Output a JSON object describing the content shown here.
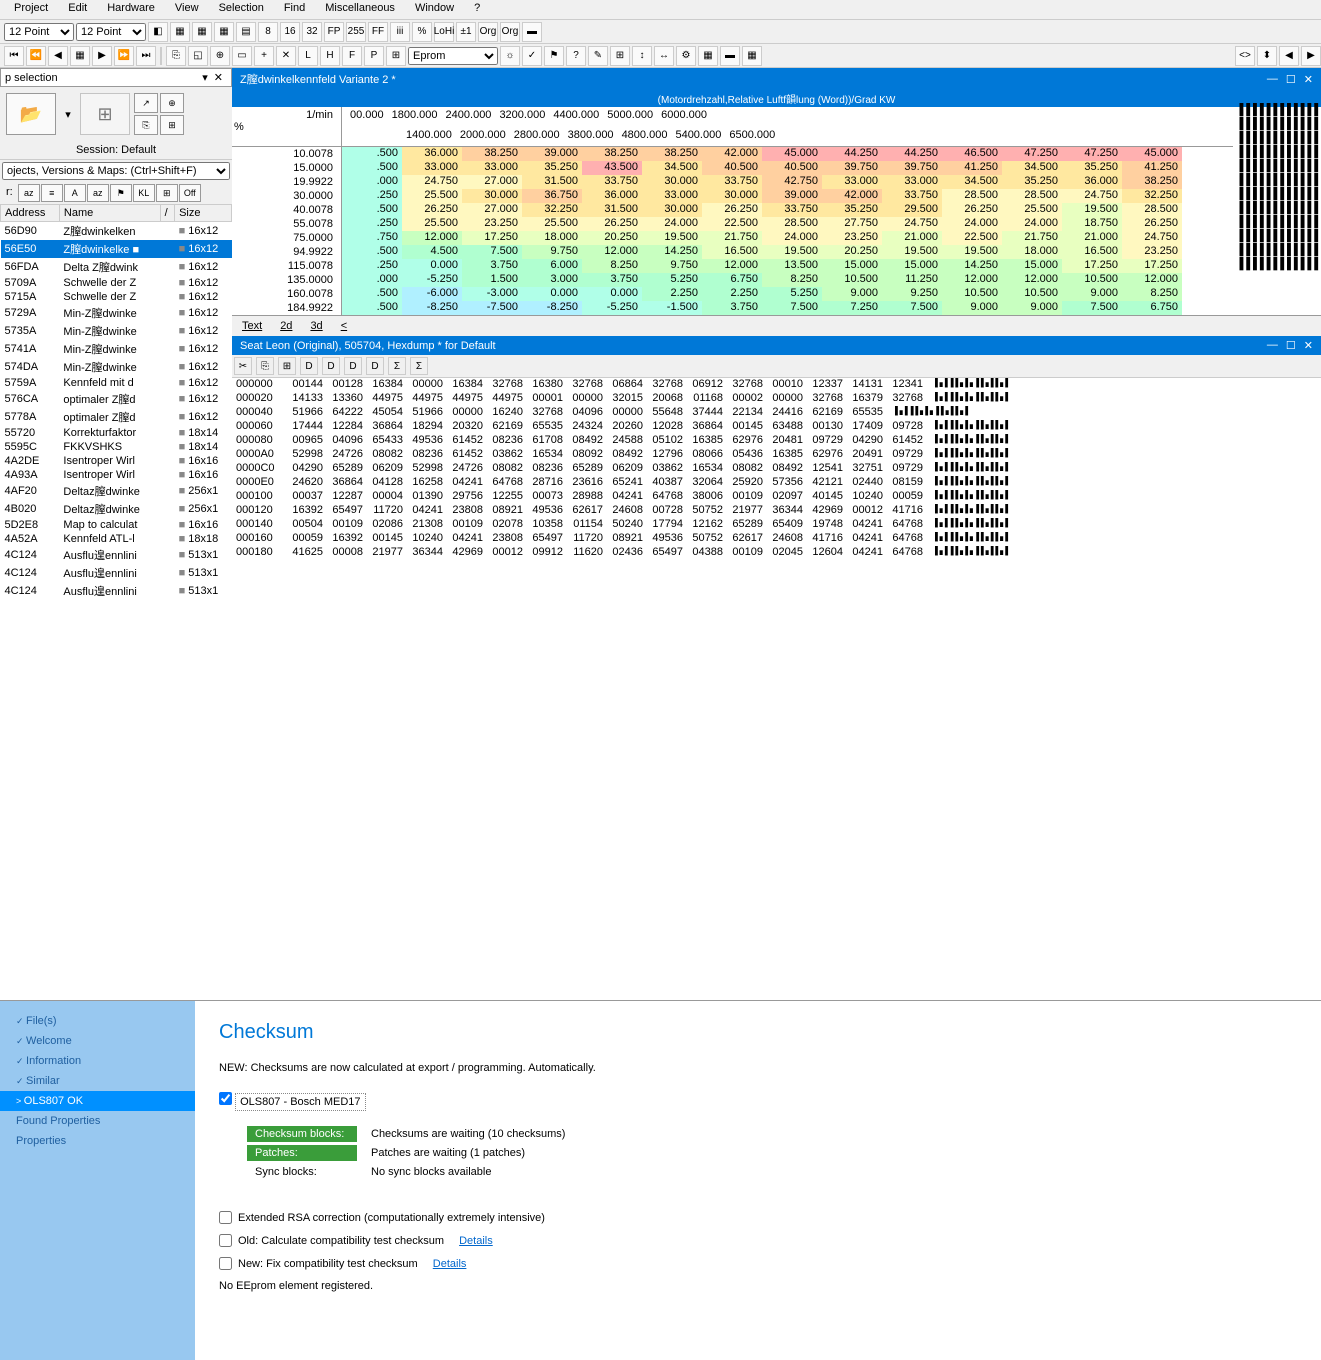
{
  "menu": [
    "Project",
    "Edit",
    "Hardware",
    "View",
    "Selection",
    "Find",
    "Miscellaneous",
    "Window",
    "?"
  ],
  "toolbar1": {
    "combo1": "12 Point",
    "combo2": "12 Point",
    "btns": [
      "◧",
      "▦",
      "▦",
      "▦",
      "▤",
      "8",
      "16",
      "32",
      "FP",
      "255",
      "FF",
      "iii",
      "%",
      "LoHi",
      "±1",
      "Org",
      "Org",
      "▬"
    ]
  },
  "toolbar2": {
    "nav": [
      "⏮",
      "⏪",
      "◀",
      "▦",
      "▶",
      "⏩",
      "⏭"
    ],
    "mid": [
      "⎘",
      "◱",
      "⊕",
      "▭",
      "+",
      "✕",
      "L",
      "H",
      "F",
      "P",
      "⊞"
    ],
    "combo": "Eprom",
    "right": [
      "☼",
      "✓",
      "⚑",
      "?",
      "✎",
      "⊞",
      "↕",
      "↔",
      "⚙",
      "▦",
      "▬",
      "▦"
    ],
    "far": [
      "<>",
      "⬍",
      "◀",
      "▶"
    ]
  },
  "leftPanel": {
    "title": "p selection",
    "session": "Session: Default",
    "filterLabel": "ojects, Versions & Maps:  (Ctrl+Shift+F)",
    "tags": [
      "az",
      "≡",
      "A",
      "az",
      "⚑",
      "KL",
      "⊞",
      "Off"
    ],
    "cols": [
      "Address",
      "Name",
      "/",
      "Size"
    ],
    "rows": [
      [
        "56D90",
        "Z膣dwinkelken",
        "16x12"
      ],
      [
        "56E50",
        "Z膣dwinkelke ■",
        "16x12"
      ],
      [
        "56FDA",
        "Delta Z膣dwink",
        "16x12"
      ],
      [
        "5709A",
        "Schwelle der Z",
        "16x12"
      ],
      [
        "5715A",
        "Schwelle der Z",
        "16x12"
      ],
      [
        "5729A",
        "Min-Z膣dwinke",
        "16x12"
      ],
      [
        "5735A",
        "Min-Z膣dwinke",
        "16x12"
      ],
      [
        "5741A",
        "Min-Z膣dwinke",
        "16x12"
      ],
      [
        "574DA",
        "Min-Z膣dwinke",
        "16x12"
      ],
      [
        "5759A",
        "Kennfeld mit d",
        "16x12"
      ],
      [
        "576CA",
        "optimaler Z膣d",
        "16x12"
      ],
      [
        "5778A",
        "optimaler Z膣d",
        "16x12"
      ],
      [
        "55720",
        "Korrekturfaktor",
        "18x14"
      ],
      [
        "5595C",
        "FKKVSHKS",
        "18x14"
      ],
      [
        "4A2DE",
        "Isentroper Wirl",
        "16x16"
      ],
      [
        "4A93A",
        "Isentroper Wirl",
        "16x16"
      ],
      [
        "4AF20",
        "Deltaz膣dwinke",
        "256x1"
      ],
      [
        "4B020",
        "Deltaz膣dwinke",
        "256x1"
      ],
      [
        "5D2E8",
        "Map to calculat",
        "16x16"
      ],
      [
        "4A52A",
        "Kennfeld ATL-l",
        "18x18"
      ],
      [
        "4C124",
        "Ausflu遑ennlini",
        "513x1"
      ],
      [
        "4C124",
        "Ausflu遑ennlini",
        "513x1"
      ],
      [
        "4C124",
        "Ausflu遑ennlini",
        "513x1"
      ]
    ],
    "selIdx": 1
  },
  "mapWin": {
    "title": "Z膣dwinkelkennfeld Variante 2 *",
    "info": "(Motordrehzahl,Relative Luftf韻lung (Word))/Grad KW",
    "unit1": "1/min",
    "unit2": "%",
    "colHdr1": [
      "00.000",
      "1800.000",
      "2400.000",
      "3200.000",
      "4400.000",
      "5000.000",
      "6000.000"
    ],
    "colHdr2": [
      "1400.000",
      "2000.000",
      "2800.000",
      "3800.000",
      "4800.000",
      "5400.000",
      "6500.000"
    ],
    "rowHdr": [
      "10.0078",
      "15.0000",
      "19.9922",
      "30.0000",
      "40.0078",
      "55.0078",
      "75.0000",
      "94.9922",
      "115.0078",
      "135.0000",
      "160.0078",
      "184.9922"
    ],
    "cells": [
      [
        ".500",
        "36.000",
        "38.250",
        "39.000",
        "38.250",
        "38.250",
        "42.000",
        "45.000",
        "44.250",
        "44.250",
        "46.500",
        "47.250",
        "47.250",
        "45.000"
      ],
      [
        ".500",
        "33.000",
        "33.000",
        "35.250",
        "43.500",
        "34.500",
        "40.500",
        "40.500",
        "39.750",
        "39.750",
        "41.250",
        "34.500",
        "35.250",
        "41.250"
      ],
      [
        ".000",
        "24.750",
        "27.000",
        "31.500",
        "33.750",
        "30.000",
        "33.750",
        "42.750",
        "33.000",
        "33.000",
        "34.500",
        "35.250",
        "36.000",
        "38.250"
      ],
      [
        ".250",
        "25.500",
        "30.000",
        "36.750",
        "36.000",
        "33.000",
        "30.000",
        "39.000",
        "42.000",
        "33.750",
        "28.500",
        "28.500",
        "24.750",
        "32.250"
      ],
      [
        ".500",
        "26.250",
        "27.000",
        "32.250",
        "31.500",
        "30.000",
        "26.250",
        "33.750",
        "35.250",
        "29.500",
        "26.250",
        "25.500",
        "19.500",
        "28.500"
      ],
      [
        ".250",
        "25.500",
        "23.250",
        "25.500",
        "26.250",
        "24.000",
        "22.500",
        "28.500",
        "27.750",
        "24.750",
        "24.000",
        "24.000",
        "18.750",
        "26.250"
      ],
      [
        ".750",
        "12.000",
        "17.250",
        "18.000",
        "20.250",
        "19.500",
        "21.750",
        "24.000",
        "23.250",
        "21.000",
        "22.500",
        "21.750",
        "21.000",
        "24.750"
      ],
      [
        ".500",
        "4.500",
        "7.500",
        "9.750",
        "12.000",
        "14.250",
        "16.500",
        "19.500",
        "20.250",
        "19.500",
        "19.500",
        "18.000",
        "16.500",
        "23.250"
      ],
      [
        ".250",
        "0.000",
        "3.750",
        "6.000",
        "8.250",
        "9.750",
        "12.000",
        "13.500",
        "15.000",
        "15.000",
        "14.250",
        "15.000",
        "17.250",
        "17.250"
      ],
      [
        ".000",
        "-5.250",
        "1.500",
        "3.000",
        "3.750",
        "5.250",
        "6.750",
        "8.250",
        "10.500",
        "11.250",
        "12.000",
        "12.000",
        "10.500",
        "12.000"
      ],
      [
        ".500",
        "-6.000",
        "-3.000",
        "0.000",
        "0.000",
        "2.250",
        "2.250",
        "5.250",
        "9.000",
        "9.250",
        "10.500",
        "10.500",
        "9.000",
        "8.250"
      ],
      [
        ".500",
        "-8.250",
        "-7.500",
        "-8.250",
        "-5.250",
        "-1.500",
        "3.750",
        "7.500",
        "7.250",
        "7.500",
        "9.000",
        "9.000",
        "7.500",
        "6.750"
      ]
    ],
    "tabs": [
      "Text",
      "2d",
      "3d",
      "<"
    ]
  },
  "hexWin": {
    "title": "Seat Leon (Original), 505704, Hexdump * for Default",
    "tb": [
      "✂",
      "⎘",
      "⊞",
      "D",
      "D",
      "D",
      "D",
      "Σ",
      "Σ"
    ],
    "rows": [
      [
        "000000",
        [
          "00144",
          "00128",
          "16384",
          "00000",
          "16384",
          "32768",
          "16380",
          "32768",
          "06864",
          "32768",
          "06912",
          "32768",
          "00010",
          "12337",
          "14131",
          "12341"
        ]
      ],
      [
        "000020",
        [
          "14133",
          "13360",
          "44975",
          "44975",
          "44975",
          "44975",
          "00001",
          "00000",
          "32015",
          "20068",
          "01168",
          "00002",
          "00000",
          "32768",
          "16379",
          "32768"
        ]
      ],
      [
        "000040",
        [
          "51966",
          "64222",
          "45054",
          "51966",
          "00000",
          "16240",
          "32768",
          "04096",
          "00000",
          "55648",
          "37444",
          "22134",
          "24416",
          "62169",
          "65535"
        ]
      ],
      [
        "000060",
        [
          "17444",
          "12284",
          "36864",
          "18294",
          "20320",
          "62169",
          "65535",
          "24324",
          "20260",
          "12028",
          "36864",
          "00145",
          "63488",
          "00130",
          "17409",
          "09728"
        ]
      ],
      [
        "000080",
        [
          "00965",
          "04096",
          "65433",
          "49536",
          "61452",
          "08236",
          "61708",
          "08492",
          "24588",
          "05102",
          "16385",
          "62976",
          "20481",
          "09729",
          "04290",
          "61452"
        ]
      ],
      [
        "0000A0",
        [
          "52998",
          "24726",
          "08082",
          "08236",
          "61452",
          "03862",
          "16534",
          "08092",
          "08492",
          "12796",
          "08066",
          "05436",
          "16385",
          "62976",
          "20491",
          "09729"
        ]
      ],
      [
        "0000C0",
        [
          "04290",
          "65289",
          "06209",
          "52998",
          "24726",
          "08082",
          "08236",
          "65289",
          "06209",
          "03862",
          "16534",
          "08082",
          "08492",
          "12541",
          "32751",
          "09729"
        ]
      ],
      [
        "0000E0",
        [
          "24620",
          "36864",
          "04128",
          "16258",
          "04241",
          "64768",
          "28716",
          "23616",
          "65241",
          "40387",
          "32064",
          "25920",
          "57356",
          "42121",
          "02440",
          "08159"
        ]
      ],
      [
        "000100",
        [
          "00037",
          "12287",
          "00004",
          "01390",
          "29756",
          "12255",
          "00073",
          "28988",
          "04241",
          "64768",
          "38006",
          "00109",
          "02097",
          "40145",
          "10240",
          "00059"
        ]
      ],
      [
        "000120",
        [
          "16392",
          "65497",
          "11720",
          "04241",
          "23808",
          "08921",
          "49536",
          "62617",
          "24608",
          "00728",
          "50752",
          "21977",
          "36344",
          "42969",
          "00012",
          "41716"
        ]
      ],
      [
        "000140",
        [
          "00504",
          "00109",
          "02086",
          "21308",
          "00109",
          "02078",
          "10358",
          "01154",
          "50240",
          "17794",
          "12162",
          "65289",
          "65409",
          "19748",
          "04241",
          "64768"
        ]
      ],
      [
        "000160",
        [
          "00059",
          "16392",
          "00145",
          "10240",
          "04241",
          "23808",
          "65497",
          "11720",
          "08921",
          "49536",
          "50752",
          "62617",
          "24608",
          "41716",
          "04241",
          "64768"
        ]
      ],
      [
        "000180",
        [
          "41625",
          "00008",
          "21977",
          "36344",
          "42969",
          "00012",
          "09912",
          "11620",
          "02436",
          "65497",
          "04388",
          "00109",
          "02045",
          "12604",
          "04241",
          "64768"
        ]
      ]
    ]
  },
  "nav": [
    {
      "t": "File(s)",
      "chk": true
    },
    {
      "t": "Welcome",
      "chk": true
    },
    {
      "t": "Information",
      "chk": true
    },
    {
      "t": "Similar",
      "chk": true
    },
    {
      "t": "OLS807 OK",
      "sel": true
    },
    {
      "t": "Found Properties",
      "nochk": true
    },
    {
      "t": "Properties",
      "nochk": true
    }
  ],
  "checksum": {
    "title": "Checksum",
    "new": "NEW:  Checksums are now calculated at export / programming. Automatically.",
    "algo": "OLS807 - Bosch MED17",
    "lines": [
      {
        "badge": "Checksum blocks:",
        "txt": "Checksums are waiting (10 checksums)",
        "green": true
      },
      {
        "badge": "Patches:",
        "txt": "Patches are waiting (1 patches)",
        "green": true
      },
      {
        "badge": "Sync blocks:",
        "txt": "No sync blocks available",
        "green": false
      }
    ],
    "chk1": "Extended RSA correction (computationally extremely intensive)",
    "chk2": "Old: Calculate compatibility test checksum",
    "chk3": "New: Fix compatibility test checksum",
    "details": "Details",
    "noee": "No EEprom element registered."
  },
  "heatColors": [
    "#ffb0b0",
    "#ffd0a0",
    "#ffe8a0",
    "#fff8c0",
    "#e8ffc0",
    "#c8ffc0",
    "#b0ffd0",
    "#b0ffe8",
    "#b0f0ff"
  ]
}
